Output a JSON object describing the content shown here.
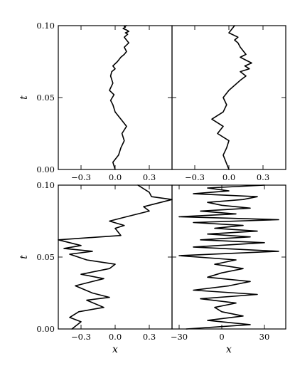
{
  "chart_data": [
    {
      "type": "line",
      "panel": "top-left",
      "xlim": [
        -0.5,
        0.5
      ],
      "ylim": [
        0.0,
        0.1
      ],
      "xticks": [
        -0.3,
        0.0,
        0.3
      ],
      "xtick_labels": [
        "−0.3",
        "0.0",
        "0.3"
      ],
      "yticks": [
        0.0,
        0.05,
        0.1
      ],
      "ytick_labels": [
        "0.00",
        "0.05",
        "0.10"
      ],
      "xlabel": "",
      "ylabel": "t",
      "series": [
        {
          "x": [
            0.0,
            -0.02,
            0.03,
            0.05,
            0.08,
            0.06,
            0.1,
            0.05,
            0.0,
            -0.02,
            -0.04,
            -0.01,
            -0.05,
            -0.02,
            -0.04,
            -0.03,
            0.0,
            -0.02,
            0.02,
            0.05,
            0.08,
            0.1,
            0.08,
            0.12,
            0.1,
            0.08,
            0.11,
            0.09,
            0.12,
            0.1,
            0.07,
            0.09,
            0.08,
            0.1
          ],
          "t": [
            0.0,
            0.005,
            0.01,
            0.015,
            0.02,
            0.025,
            0.03,
            0.035,
            0.04,
            0.045,
            0.048,
            0.052,
            0.055,
            0.06,
            0.065,
            0.068,
            0.07,
            0.072,
            0.075,
            0.078,
            0.08,
            0.082,
            0.085,
            0.088,
            0.09,
            0.092,
            0.094,
            0.095,
            0.096,
            0.097,
            0.098,
            0.099,
            0.0995,
            0.1
          ]
        }
      ]
    },
    {
      "type": "line",
      "panel": "top-right",
      "xlim": [
        -0.5,
        0.5
      ],
      "ylim": [
        0.0,
        0.1
      ],
      "xticks": [
        -0.3,
        0.0,
        0.3
      ],
      "xtick_labels": [
        "−0.3",
        "0.0",
        "0.3"
      ],
      "yticks": [
        0.0,
        0.05,
        0.1
      ],
      "ytick_labels": [],
      "xlabel": "",
      "series": [
        {
          "x": [
            0.0,
            -0.05,
            -0.02,
            0.0,
            -0.1,
            -0.05,
            -0.15,
            -0.05,
            -0.02,
            -0.05,
            0.0,
            0.1,
            0.15,
            0.1,
            0.18,
            0.14,
            0.2,
            0.15,
            0.1,
            0.15,
            0.1,
            0.08,
            0.05,
            0.08,
            0.0,
            0.05
          ],
          "t": [
            0.0,
            0.01,
            0.015,
            0.02,
            0.025,
            0.03,
            0.035,
            0.04,
            0.045,
            0.05,
            0.055,
            0.062,
            0.065,
            0.068,
            0.07,
            0.072,
            0.074,
            0.076,
            0.078,
            0.08,
            0.085,
            0.088,
            0.09,
            0.092,
            0.095,
            0.1
          ]
        }
      ]
    },
    {
      "type": "line",
      "panel": "bottom-left",
      "xlim": [
        -0.5,
        0.5
      ],
      "ylim": [
        0.0,
        0.1
      ],
      "xticks": [
        -0.3,
        0.0,
        0.3
      ],
      "xtick_labels": [
        "−0.3",
        "0.0",
        "0.3"
      ],
      "yticks": [
        0.0,
        0.05,
        0.1
      ],
      "ytick_labels": [
        "0.00",
        "0.05",
        "0.10"
      ],
      "xlabel": "x",
      "ylabel": "t",
      "series": [
        {
          "x": [
            -0.38,
            -0.3,
            -0.4,
            -0.32,
            -0.1,
            -0.25,
            -0.05,
            -0.2,
            -0.35,
            -0.1,
            -0.3,
            -0.05,
            0.0,
            -0.25,
            -0.4,
            -0.2,
            -0.45,
            -0.3,
            -0.4,
            -0.5,
            0.05,
            0.0,
            0.08,
            -0.05,
            0.1,
            0.2,
            0.3,
            0.25,
            0.5,
            0.32,
            0.3,
            0.2
          ],
          "t": [
            0.0,
            0.005,
            0.008,
            0.012,
            0.015,
            0.02,
            0.022,
            0.025,
            0.03,
            0.035,
            0.038,
            0.042,
            0.045,
            0.048,
            0.052,
            0.054,
            0.056,
            0.058,
            0.06,
            0.062,
            0.065,
            0.07,
            0.072,
            0.075,
            0.078,
            0.08,
            0.082,
            0.085,
            0.09,
            0.092,
            0.095,
            0.1
          ]
        }
      ]
    },
    {
      "type": "line",
      "panel": "bottom-right",
      "xlim": [
        -35,
        45
      ],
      "ylim": [
        0.0,
        0.1
      ],
      "xticks": [
        -30,
        0,
        30
      ],
      "xtick_labels": [
        "−30",
        "0",
        "30"
      ],
      "yticks": [
        0.0,
        0.05,
        0.1
      ],
      "ytick_labels": [],
      "xlabel": "x",
      "series": [
        {
          "x": [
            -25,
            20,
            -10,
            15,
            0,
            -5,
            10,
            -15,
            25,
            -20,
            5,
            20,
            -10,
            0,
            15,
            -5,
            10,
            -30,
            40,
            -20,
            30,
            -15,
            20,
            -10,
            25,
            -5,
            15,
            -20,
            40,
            -30,
            10,
            -15,
            20,
            0,
            -10,
            15,
            25,
            -20,
            5,
            -10,
            30
          ],
          "t": [
            0.0,
            0.003,
            0.006,
            0.009,
            0.012,
            0.015,
            0.018,
            0.021,
            0.024,
            0.027,
            0.03,
            0.033,
            0.036,
            0.039,
            0.042,
            0.045,
            0.048,
            0.051,
            0.054,
            0.057,
            0.06,
            0.062,
            0.064,
            0.066,
            0.068,
            0.07,
            0.072,
            0.074,
            0.076,
            0.078,
            0.08,
            0.082,
            0.084,
            0.086,
            0.088,
            0.09,
            0.092,
            0.094,
            0.096,
            0.098,
            0.1
          ]
        }
      ]
    }
  ]
}
